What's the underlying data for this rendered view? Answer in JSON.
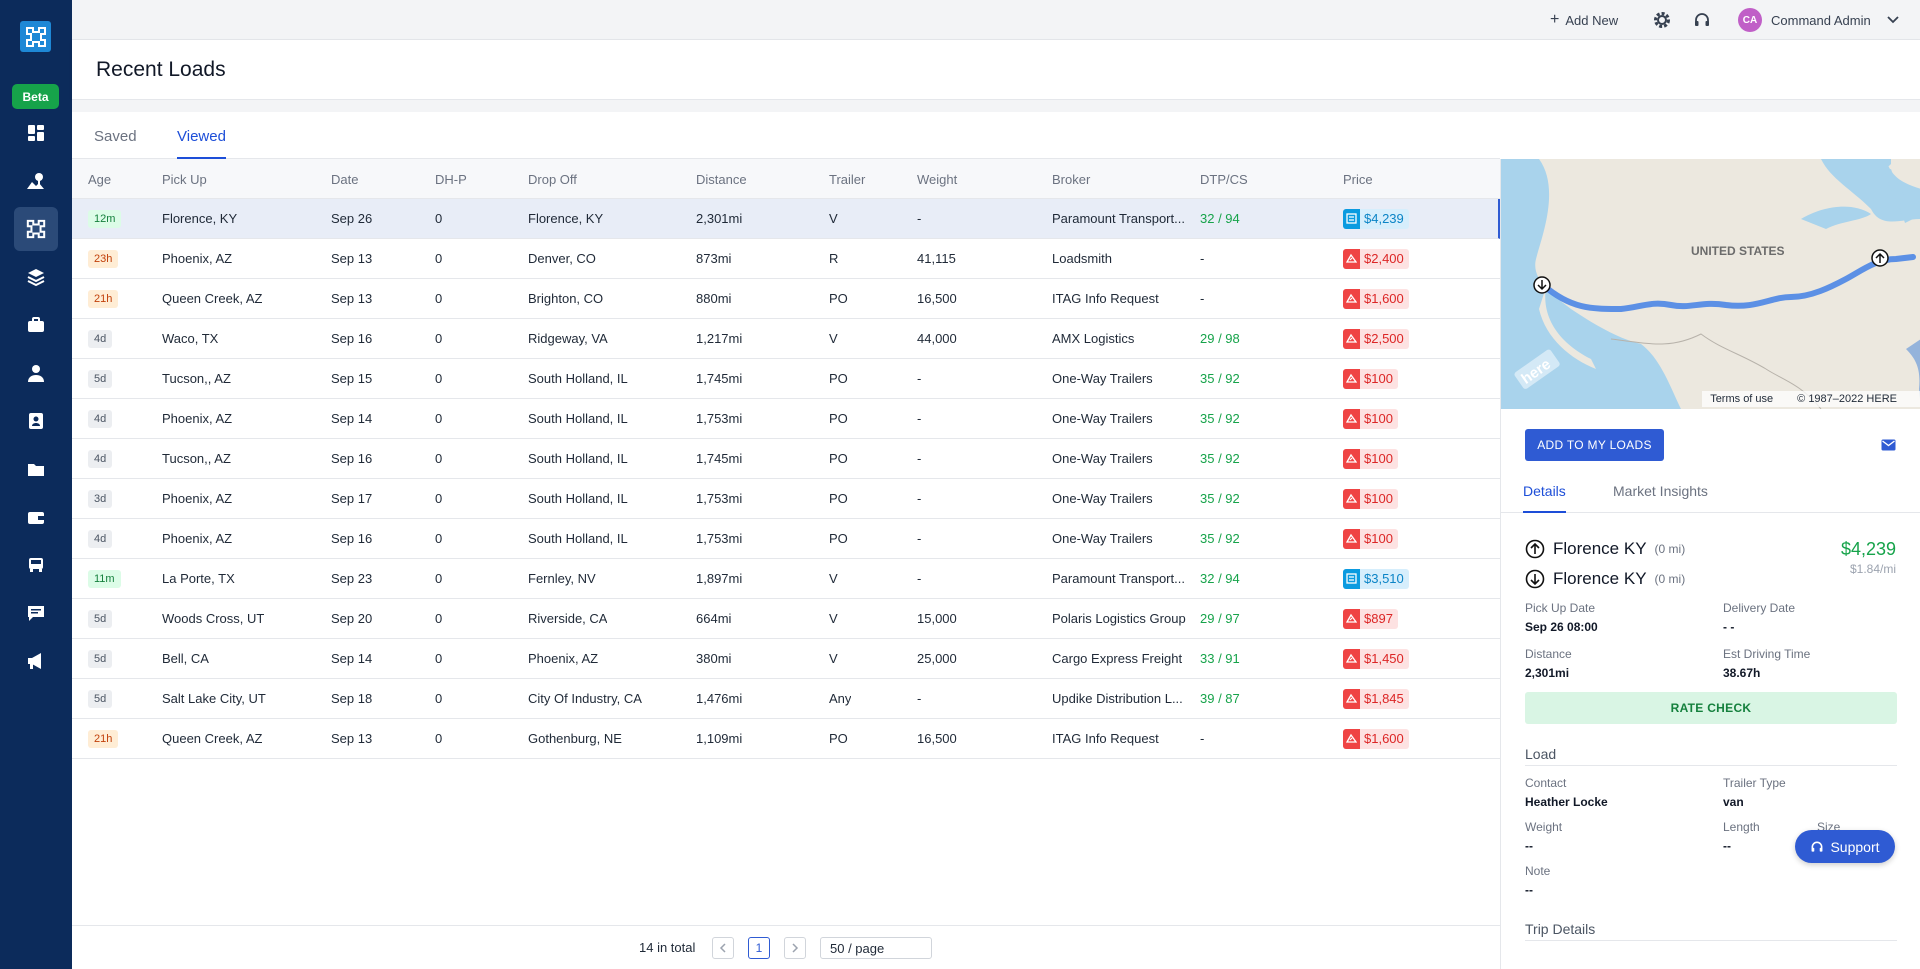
{
  "topbar": {
    "add_new": "Add New",
    "avatar_initials": "CA",
    "user_name": "Command Admin"
  },
  "sidebar": {
    "beta": "Beta",
    "items": [
      "dashboard-icon",
      "map-pin-icon",
      "load-board-icon",
      "layers-icon",
      "briefcase-icon",
      "driver-icon",
      "contact-card-icon",
      "folder-icon",
      "wallet-icon",
      "truck-icon",
      "chat-icon",
      "megaphone-icon"
    ]
  },
  "page": {
    "title": "Recent Loads"
  },
  "tabs": [
    "Saved",
    "Viewed"
  ],
  "table": {
    "columns": [
      "Age",
      "Pick Up",
      "Date",
      "DH-P",
      "Drop Off",
      "Distance",
      "Trailer",
      "Weight",
      "Broker",
      "DTP/CS",
      "Price"
    ],
    "rows": [
      {
        "age": "12m",
        "age_tone": "green",
        "pickup": "Florence, KY",
        "date": "Sep 26",
        "dhp": "0",
        "dropoff": "Florence, KY",
        "distance": "2,301mi",
        "trailer": "V",
        "weight": "-",
        "broker": "Paramount Transport...",
        "dtp": "32 / 94",
        "price": "$4,239",
        "price_tone": "blue"
      },
      {
        "age": "23h",
        "age_tone": "orange",
        "pickup": "Phoenix, AZ",
        "date": "Sep 13",
        "dhp": "0",
        "dropoff": "Denver, CO",
        "distance": "873mi",
        "trailer": "R",
        "weight": "41,115",
        "broker": "Loadsmith",
        "dtp": "-",
        "price": "$2,400",
        "price_tone": "red"
      },
      {
        "age": "21h",
        "age_tone": "orange",
        "pickup": "Queen Creek, AZ",
        "date": "Sep 13",
        "dhp": "0",
        "dropoff": "Brighton, CO",
        "distance": "880mi",
        "trailer": "PO",
        "weight": "16,500",
        "broker": "ITAG Info Request",
        "dtp": "-",
        "price": "$1,600",
        "price_tone": "red"
      },
      {
        "age": "4d",
        "age_tone": "gray",
        "pickup": "Waco, TX",
        "date": "Sep 16",
        "dhp": "0",
        "dropoff": "Ridgeway, VA",
        "distance": "1,217mi",
        "trailer": "V",
        "weight": "44,000",
        "broker": "AMX Logistics",
        "dtp": "29 / 98",
        "price": "$2,500",
        "price_tone": "red"
      },
      {
        "age": "5d",
        "age_tone": "gray",
        "pickup": "Tucson,, AZ",
        "date": "Sep 15",
        "dhp": "0",
        "dropoff": "South Holland, IL",
        "distance": "1,745mi",
        "trailer": "PO",
        "weight": "-",
        "broker": "One-Way Trailers",
        "dtp": "35 / 92",
        "price": "$100",
        "price_tone": "red"
      },
      {
        "age": "4d",
        "age_tone": "gray",
        "pickup": "Phoenix, AZ",
        "date": "Sep 14",
        "dhp": "0",
        "dropoff": "South Holland, IL",
        "distance": "1,753mi",
        "trailer": "PO",
        "weight": "-",
        "broker": "One-Way Trailers",
        "dtp": "35 / 92",
        "price": "$100",
        "price_tone": "red"
      },
      {
        "age": "4d",
        "age_tone": "gray",
        "pickup": "Tucson,, AZ",
        "date": "Sep 16",
        "dhp": "0",
        "dropoff": "South Holland, IL",
        "distance": "1,745mi",
        "trailer": "PO",
        "weight": "-",
        "broker": "One-Way Trailers",
        "dtp": "35 / 92",
        "price": "$100",
        "price_tone": "red"
      },
      {
        "age": "3d",
        "age_tone": "gray",
        "pickup": "Phoenix, AZ",
        "date": "Sep 17",
        "dhp": "0",
        "dropoff": "South Holland, IL",
        "distance": "1,753mi",
        "trailer": "PO",
        "weight": "-",
        "broker": "One-Way Trailers",
        "dtp": "35 / 92",
        "price": "$100",
        "price_tone": "red"
      },
      {
        "age": "4d",
        "age_tone": "gray",
        "pickup": "Phoenix, AZ",
        "date": "Sep 16",
        "dhp": "0",
        "dropoff": "South Holland, IL",
        "distance": "1,753mi",
        "trailer": "PO",
        "weight": "-",
        "broker": "One-Way Trailers",
        "dtp": "35 / 92",
        "price": "$100",
        "price_tone": "red"
      },
      {
        "age": "11m",
        "age_tone": "green",
        "pickup": "La Porte, TX",
        "date": "Sep 23",
        "dhp": "0",
        "dropoff": "Fernley, NV",
        "distance": "1,897mi",
        "trailer": "V",
        "weight": "-",
        "broker": "Paramount Transport...",
        "dtp": "32 / 94",
        "price": "$3,510",
        "price_tone": "blue"
      },
      {
        "age": "5d",
        "age_tone": "gray",
        "pickup": "Woods Cross, UT",
        "date": "Sep 20",
        "dhp": "0",
        "dropoff": "Riverside, CA",
        "distance": "664mi",
        "trailer": "V",
        "weight": "15,000",
        "broker": "Polaris Logistics Group",
        "dtp": "29 / 97",
        "price": "$897",
        "price_tone": "red"
      },
      {
        "age": "5d",
        "age_tone": "gray",
        "pickup": "Bell, CA",
        "date": "Sep 14",
        "dhp": "0",
        "dropoff": "Phoenix, AZ",
        "distance": "380mi",
        "trailer": "V",
        "weight": "25,000",
        "broker": "Cargo Express Freight",
        "dtp": "33 / 91",
        "price": "$1,450",
        "price_tone": "red"
      },
      {
        "age": "5d",
        "age_tone": "gray",
        "pickup": "Salt Lake City, UT",
        "date": "Sep 18",
        "dhp": "0",
        "dropoff": "City Of Industry, CA",
        "distance": "1,476mi",
        "trailer": "Any",
        "weight": "-",
        "broker": "Updike Distribution L...",
        "dtp": "39 / 87",
        "price": "$1,845",
        "price_tone": "red"
      },
      {
        "age": "21h",
        "age_tone": "orange",
        "pickup": "Queen Creek, AZ",
        "date": "Sep 13",
        "dhp": "0",
        "dropoff": "Gothenburg, NE",
        "distance": "1,109mi",
        "trailer": "PO",
        "weight": "16,500",
        "broker": "ITAG Info Request",
        "dtp": "-",
        "price": "$1,600",
        "price_tone": "red"
      }
    ]
  },
  "pagination": {
    "total": "14 in total",
    "current_page": "1",
    "page_size": "50 / page"
  },
  "map": {
    "country_label": "UNITED STATES",
    "terms": "Terms of use",
    "copyright": "© 1987–2022 HERE",
    "brand": "here"
  },
  "detail": {
    "add_button": "ADD TO MY LOADS",
    "tabs": [
      "Details",
      "Market Insights"
    ],
    "origin_city": "Florence KY",
    "origin_dh": "(0 mi)",
    "dest_city": "Florence KY",
    "dest_dh": "(0 mi)",
    "price": "$4,239",
    "rate": "$1.84/mi",
    "pickup_date_label": "Pick Up Date",
    "pickup_date": "Sep 26 08:00",
    "delivery_date_label": "Delivery Date",
    "delivery_date": "- -",
    "distance_label": "Distance",
    "distance": "2,301mi",
    "driving_time_label": "Est Driving Time",
    "driving_time": "38.67h",
    "rate_check": "RATE CHECK",
    "load_section": "Load",
    "contact_label": "Contact",
    "contact": "Heather Locke",
    "trailer_type_label": "Trailer Type",
    "trailer_type": "van",
    "weight_label": "Weight",
    "weight": "--",
    "length_label": "Length",
    "length": "--",
    "size_label": "Size",
    "note_label": "Note",
    "note": "--",
    "trip_section": "Trip Details"
  },
  "support": {
    "label": "Support"
  },
  "colors": {
    "sidebar": "#0c2b5b",
    "accent": "#2f5bd3",
    "beta": "#16a34a",
    "price_blue": "#0b9be0",
    "price_red": "#ef4444"
  }
}
